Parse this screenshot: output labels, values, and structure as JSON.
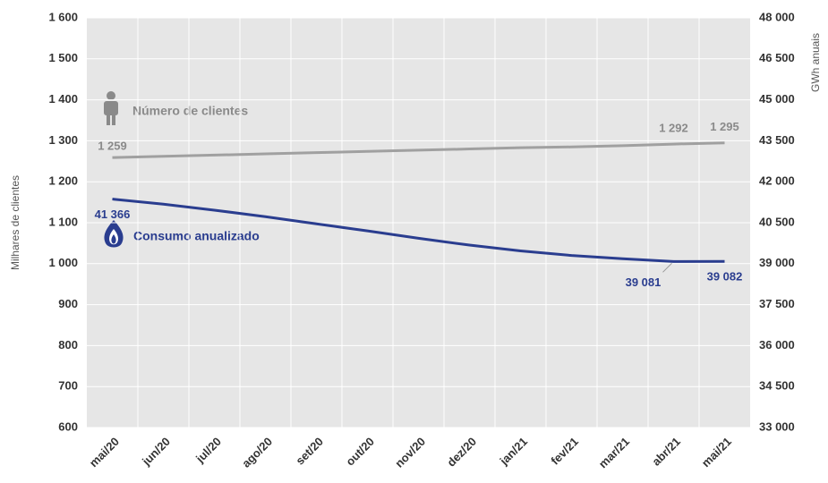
{
  "chart_data": {
    "type": "line",
    "ylabel": "Milhares de clientes",
    "y2label": "GWh anuais",
    "categories": [
      "mai/20",
      "jun/20",
      "jul/20",
      "ago/20",
      "set/20",
      "out/20",
      "nov/20",
      "dez/20",
      "jan/21",
      "fev/21",
      "mar/21",
      "abr/21",
      "mai/21"
    ],
    "series": [
      {
        "name": "Número de clientes",
        "color": "#a0a0a0",
        "axis": "y",
        "values": [
          1259,
          1262,
          1265,
          1268,
          1271,
          1274,
          1277,
          1280,
          1283,
          1285,
          1288,
          1292,
          1295
        ],
        "value_labels": [
          "1 259",
          null,
          null,
          null,
          null,
          null,
          null,
          null,
          null,
          null,
          null,
          "1 292",
          "1 295"
        ]
      },
      {
        "name": "Consumo anualizado",
        "color": "#2a3d8f",
        "axis": "y2",
        "values": [
          41366,
          41180,
          40960,
          40720,
          40460,
          40200,
          39930,
          39680,
          39470,
          39300,
          39180,
          39081,
          39082
        ],
        "value_labels": [
          "41 366",
          null,
          null,
          null,
          null,
          null,
          null,
          null,
          null,
          null,
          null,
          "39 081",
          "39 082"
        ]
      }
    ],
    "ylim": [
      600,
      1600
    ],
    "yticks": [
      {
        "value": 1600,
        "label": "1 600"
      },
      {
        "value": 1500,
        "label": "1 500"
      },
      {
        "value": 1400,
        "label": "1 400"
      },
      {
        "value": 1300,
        "label": "1 300"
      },
      {
        "value": 1200,
        "label": "1 200"
      },
      {
        "value": 1100,
        "label": "1 100"
      },
      {
        "value": 1000,
        "label": "1 000"
      },
      900,
      800,
      700,
      600
    ],
    "y2lim": [
      33000,
      48000
    ],
    "y2ticks": [
      {
        "value": 48000,
        "label": "48 000"
      },
      {
        "value": 46500,
        "label": "46 500"
      },
      {
        "value": 45000,
        "label": "45 000"
      },
      {
        "value": 43500,
        "label": "43 500"
      },
      {
        "value": 42000,
        "label": "42 000"
      },
      {
        "value": 40500,
        "label": "40 500"
      },
      {
        "value": 39000,
        "label": "39 000"
      },
      {
        "value": 37500,
        "label": "37 500"
      },
      {
        "value": 36000,
        "label": "36 000"
      },
      {
        "value": 34500,
        "label": "34 500"
      },
      {
        "value": 33000,
        "label": "33 000"
      }
    ],
    "grid": true
  }
}
